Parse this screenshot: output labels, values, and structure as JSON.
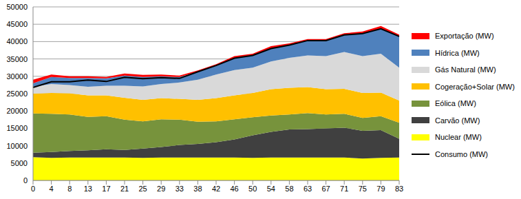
{
  "chart_data": {
    "type": "area",
    "stacked": true,
    "grid": true,
    "legend": "right",
    "categories": [
      "0",
      "4",
      "8",
      "13",
      "17",
      "21",
      "25",
      "29",
      "33",
      "38",
      "42",
      "46",
      "50",
      "54",
      "58",
      "63",
      "67",
      "71",
      "75",
      "79",
      "83"
    ],
    "ylim": [
      0,
      50000
    ],
    "yticks": [
      0,
      5000,
      10000,
      15000,
      20000,
      25000,
      30000,
      35000,
      40000,
      45000,
      50000
    ],
    "series": [
      {
        "name": "Exportação (MW)",
        "color": "#ff0000",
        "values": [
          1000,
          700,
          500,
          500,
          400,
          600,
          600,
          500,
          400,
          400,
          500,
          600,
          500,
          700,
          500,
          400,
          400,
          400,
          600,
          700,
          500
        ]
      },
      {
        "name": "Hídrica (MW)",
        "color": "#4f81bd",
        "values": [
          1000,
          2000,
          2000,
          2500,
          2100,
          2900,
          2700,
          2200,
          1600,
          2300,
          2500,
          3400,
          3500,
          3700,
          3700,
          4300,
          4500,
          5000,
          6500,
          7300,
          9000
        ]
      },
      {
        "name": "Gás Natural (MW)",
        "color": "#d9d9d9",
        "values": [
          2000,
          2600,
          2400,
          2500,
          2800,
          3500,
          3900,
          4100,
          4700,
          5800,
          6800,
          7300,
          7300,
          8000,
          8600,
          9100,
          9500,
          10600,
          10600,
          11200,
          9500
        ]
      },
      {
        "name": "Cogeração+Solar (MW)",
        "color": "#ffc000",
        "values": [
          5700,
          6000,
          6100,
          6200,
          6000,
          6300,
          6200,
          6100,
          6000,
          6300,
          6700,
          6900,
          7000,
          7600,
          7700,
          7500,
          7300,
          7200,
          7200,
          6800,
          6400
        ]
      },
      {
        "name": "Eólica (MW)",
        "color": "#77933c",
        "values": [
          11300,
          11000,
          10500,
          9600,
          9500,
          8700,
          7800,
          8000,
          7300,
          6400,
          6000,
          5800,
          5200,
          4700,
          4300,
          4600,
          4000,
          4000,
          3700,
          4000,
          4600
        ]
      },
      {
        "name": "Carvão (MW)",
        "color": "#404040",
        "values": [
          1300,
          1700,
          1900,
          2100,
          2400,
          2200,
          2700,
          3000,
          3600,
          3900,
          4400,
          5200,
          6500,
          7400,
          8100,
          8200,
          8400,
          8600,
          8000,
          8000,
          5400
        ]
      },
      {
        "name": "Nuclear (MW)",
        "color": "#ffff00",
        "values": [
          6700,
          6500,
          6600,
          6600,
          6600,
          6600,
          6500,
          6600,
          6600,
          6600,
          6600,
          6600,
          6500,
          6600,
          6600,
          6600,
          6600,
          6600,
          6300,
          6500,
          6600
        ]
      },
      {
        "name": "Consumo (MW)",
        "color": "#000000",
        "type": "line",
        "values": [
          26800,
          28400,
          28400,
          28900,
          28500,
          29700,
          29300,
          29600,
          29400,
          31300,
          33100,
          35200,
          36000,
          38000,
          39000,
          40300,
          40300,
          41900,
          42300,
          43700,
          41500
        ]
      }
    ]
  }
}
